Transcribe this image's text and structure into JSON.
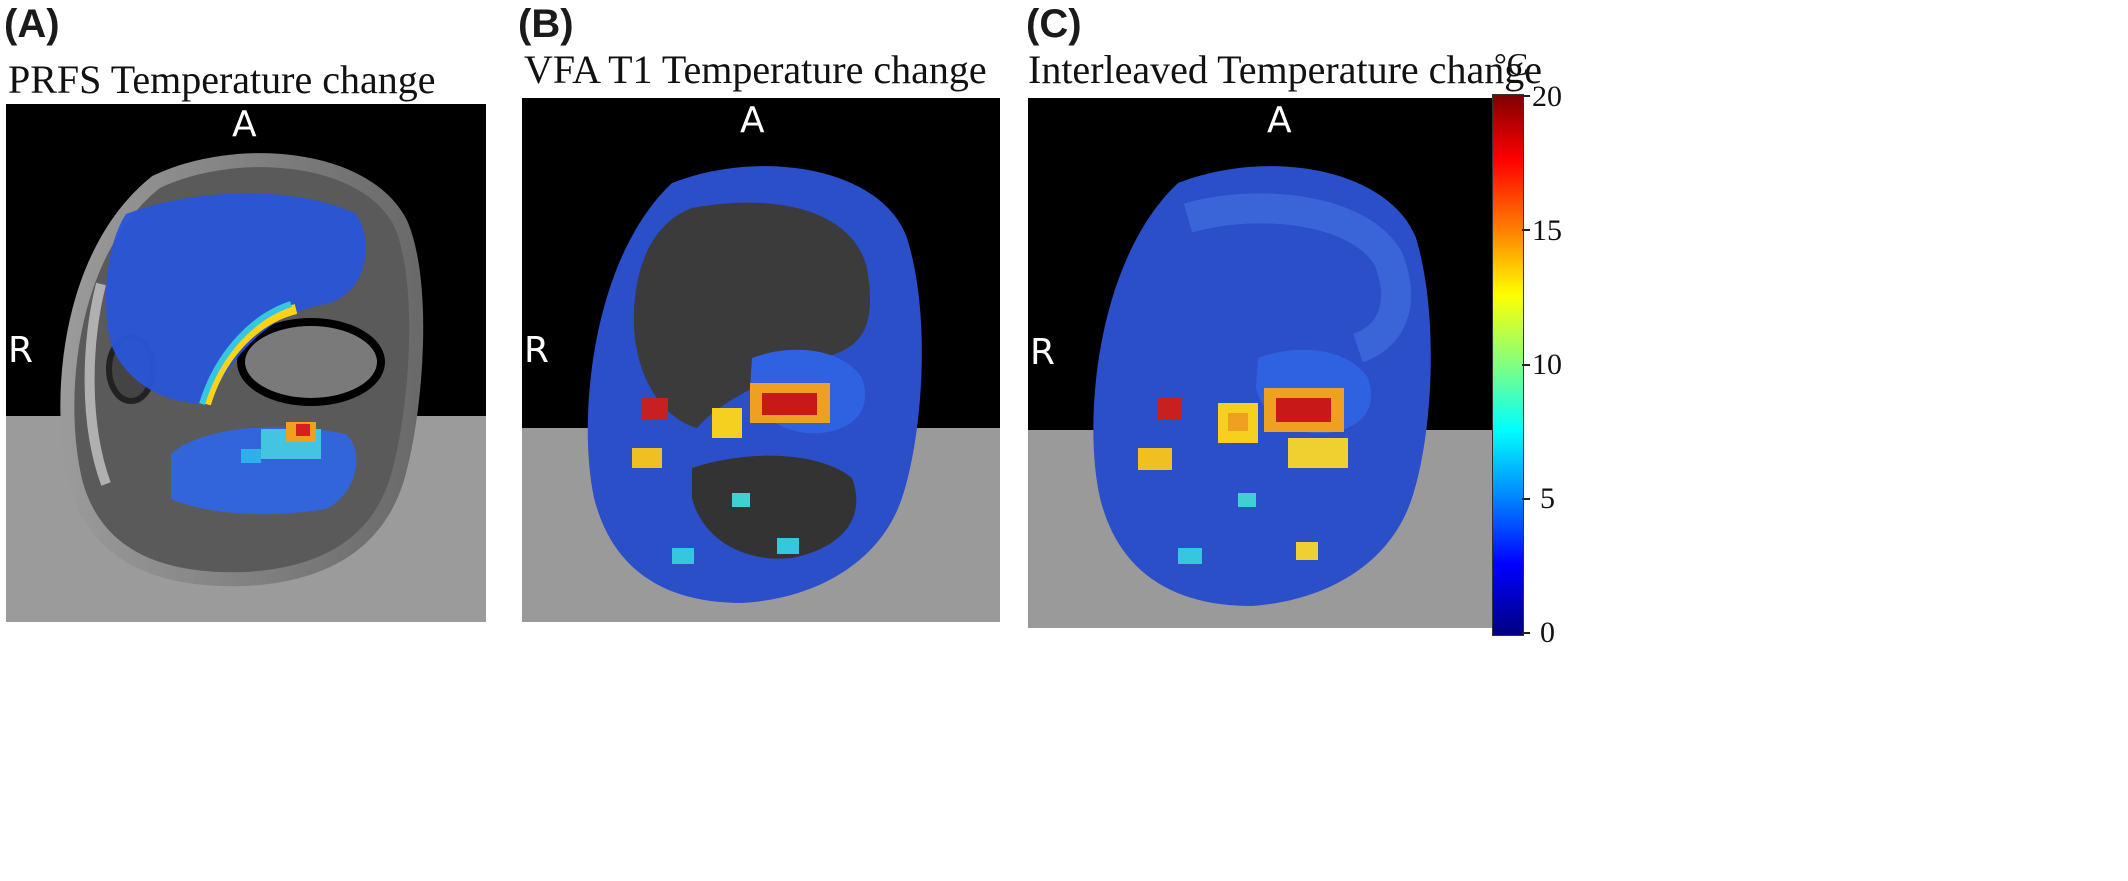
{
  "panels": [
    {
      "letter": "(A)",
      "title": "PRFS Temperature change",
      "anterior": "A",
      "right": "R"
    },
    {
      "letter": "(B)",
      "title": "VFA T1 Temperature change",
      "anterior": "A",
      "right": "R"
    },
    {
      "letter": "(C)",
      "title": "Interleaved Temperature change",
      "anterior": "A",
      "right": "R"
    }
  ],
  "colorbar": {
    "unit": "°C",
    "ticks": [
      "20",
      "15",
      "10",
      "5",
      "0"
    ],
    "min": 0,
    "max": 20,
    "colormap": "jet"
  }
}
